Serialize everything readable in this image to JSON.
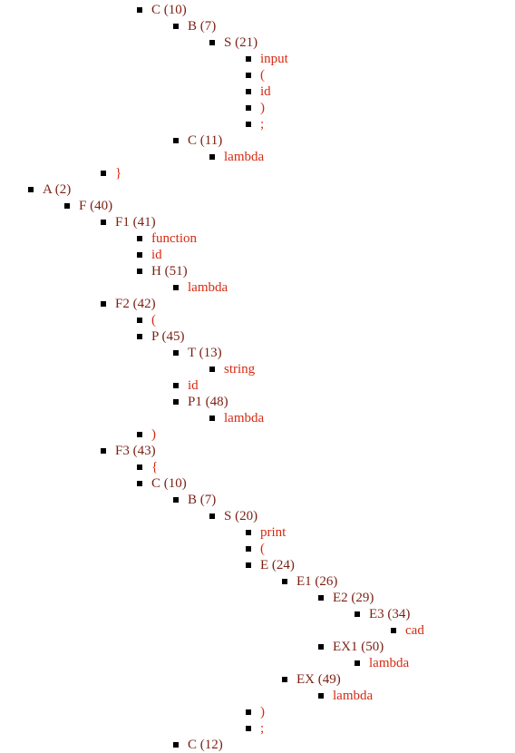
{
  "tree": {
    "nodes": [
      {
        "text": "C (10)",
        "kind": "nonterminal"
      },
      {
        "text": "B (7)",
        "kind": "nonterminal"
      },
      {
        "text": "S (21)",
        "kind": "nonterminal"
      },
      {
        "text": "input",
        "kind": "terminal"
      },
      {
        "text": "(",
        "kind": "terminal"
      },
      {
        "text": "id",
        "kind": "terminal"
      },
      {
        "text": ")",
        "kind": "terminal"
      },
      {
        "text": ";",
        "kind": "terminal"
      },
      {
        "text": "C (11)",
        "kind": "nonterminal"
      },
      {
        "text": "lambda",
        "kind": "terminal"
      },
      {
        "text": "}",
        "kind": "terminal"
      },
      {
        "text": "A (2)",
        "kind": "nonterminal"
      },
      {
        "text": "F (40)",
        "kind": "nonterminal"
      },
      {
        "text": "F1 (41)",
        "kind": "nonterminal"
      },
      {
        "text": "function",
        "kind": "terminal"
      },
      {
        "text": "id",
        "kind": "terminal"
      },
      {
        "text": "H (51)",
        "kind": "nonterminal"
      },
      {
        "text": "lambda",
        "kind": "terminal"
      },
      {
        "text": "F2 (42)",
        "kind": "nonterminal"
      },
      {
        "text": "(",
        "kind": "terminal"
      },
      {
        "text": "P (45)",
        "kind": "nonterminal"
      },
      {
        "text": "T (13)",
        "kind": "nonterminal"
      },
      {
        "text": "string",
        "kind": "terminal"
      },
      {
        "text": "id",
        "kind": "terminal"
      },
      {
        "text": "P1 (48)",
        "kind": "nonterminal"
      },
      {
        "text": "lambda",
        "kind": "terminal"
      },
      {
        "text": ")",
        "kind": "terminal"
      },
      {
        "text": "F3 (43)",
        "kind": "nonterminal"
      },
      {
        "text": "{",
        "kind": "terminal"
      },
      {
        "text": "C (10)",
        "kind": "nonterminal"
      },
      {
        "text": "B (7)",
        "kind": "nonterminal"
      },
      {
        "text": "S (20)",
        "kind": "nonterminal"
      },
      {
        "text": "print",
        "kind": "terminal"
      },
      {
        "text": "(",
        "kind": "terminal"
      },
      {
        "text": "E (24)",
        "kind": "nonterminal"
      },
      {
        "text": "E1 (26)",
        "kind": "nonterminal"
      },
      {
        "text": "E2 (29)",
        "kind": "nonterminal"
      },
      {
        "text": "E3 (34)",
        "kind": "nonterminal"
      },
      {
        "text": "cad",
        "kind": "terminal"
      },
      {
        "text": "EX1 (50)",
        "kind": "nonterminal"
      },
      {
        "text": "lambda",
        "kind": "terminal"
      },
      {
        "text": "EX (49)",
        "kind": "nonterminal"
      },
      {
        "text": "lambda",
        "kind": "terminal"
      },
      {
        "text": ")",
        "kind": "terminal"
      },
      {
        "text": ";",
        "kind": "terminal"
      },
      {
        "text": "C (12)",
        "kind": "nonterminal"
      }
    ],
    "colors": {
      "nonterminal": "#7a1f12",
      "terminal": "#d62a12",
      "bullet": "#000000"
    }
  }
}
